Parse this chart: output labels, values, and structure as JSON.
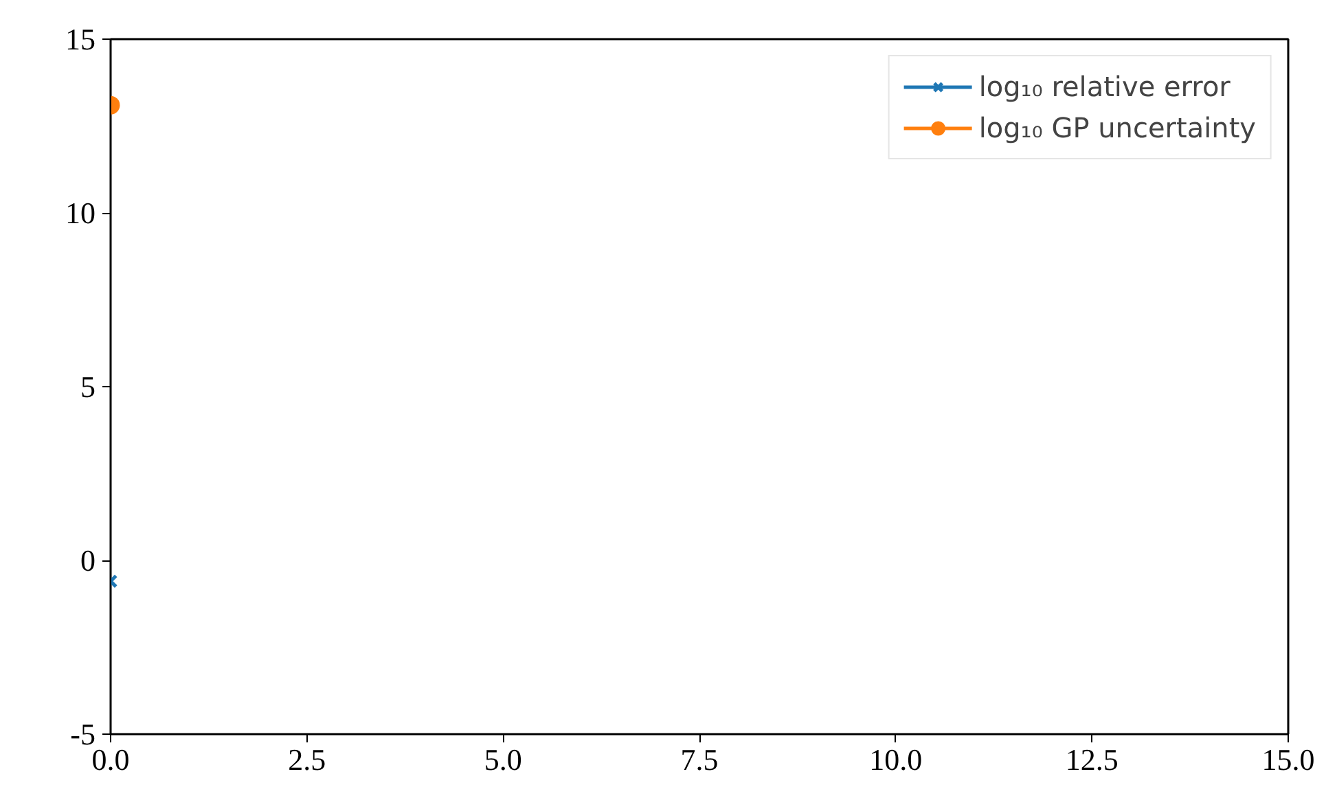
{
  "chart_data": {
    "type": "line",
    "x": [
      0
    ],
    "series": [
      {
        "name": "log₁₀ relative error",
        "color": "#1f77b4",
        "values": [
          -0.6
        ],
        "marker": "cross"
      },
      {
        "name": "log₁₀ GP uncertainty",
        "color": "#ff7f0e",
        "values": [
          13.1
        ],
        "marker": "circle"
      }
    ],
    "xlim": [
      0,
      15
    ],
    "xticks": [
      {
        "value": 0,
        "label": "0.0"
      },
      {
        "value": 2.5,
        "label": "2.5"
      },
      {
        "value": 5,
        "label": "5.0"
      },
      {
        "value": 7.5,
        "label": "7.5"
      },
      {
        "value": 10,
        "label": "10.0"
      },
      {
        "value": 12.5,
        "label": "12.5"
      },
      {
        "value": 15,
        "label": "15.0"
      }
    ],
    "ylim": [
      -5,
      15
    ],
    "yticks": [
      -5,
      0,
      5,
      10,
      15
    ],
    "grid": false,
    "legend": "top right",
    "line_style": "solid"
  }
}
